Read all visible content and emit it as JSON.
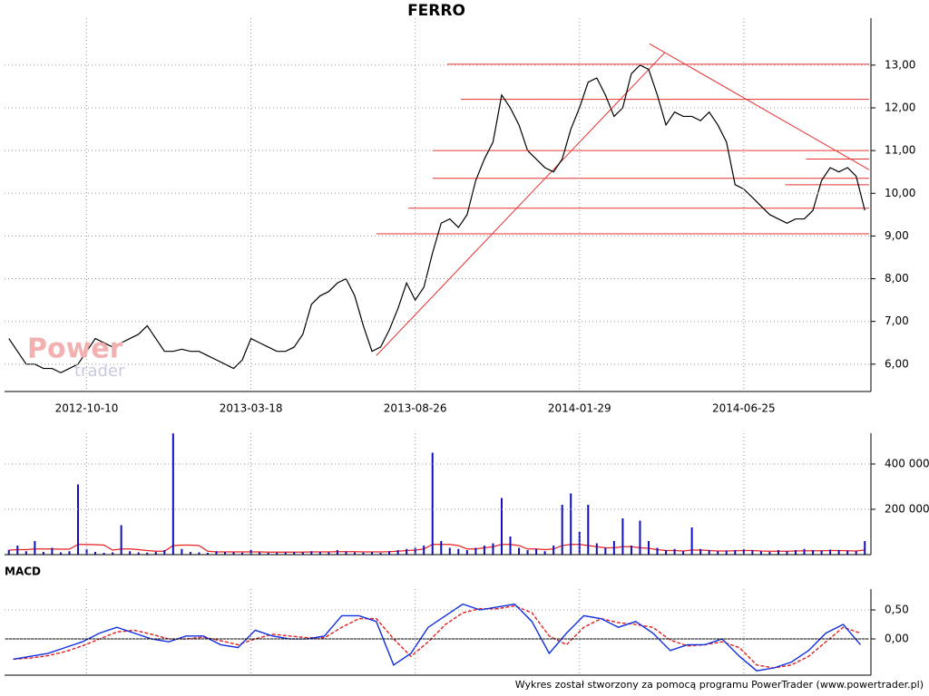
{
  "chart_data": [
    {
      "type": "price",
      "title": "FERRO",
      "categories": [
        null,
        null,
        null,
        null,
        null,
        null,
        null,
        null,
        null,
        "2012-10-10",
        null,
        null,
        null,
        null,
        null,
        null,
        null,
        null,
        null,
        null,
        null,
        null,
        null,
        null,
        null,
        null,
        null,
        null,
        "2013-03-18",
        null,
        null,
        null,
        null,
        null,
        null,
        null,
        null,
        null,
        null,
        null,
        null,
        null,
        null,
        null,
        null,
        null,
        null,
        "2013-08-26",
        null,
        null,
        null,
        null,
        null,
        null,
        null,
        null,
        null,
        null,
        null,
        null,
        null,
        null,
        null,
        null,
        null,
        null,
        "2014-01-29",
        null,
        null,
        null,
        null,
        null,
        null,
        null,
        null,
        null,
        null,
        null,
        null,
        null,
        null,
        null,
        null,
        null,
        null,
        "2014-06-25",
        null,
        null,
        null,
        null,
        null,
        null,
        null,
        null,
        null,
        null,
        null,
        null,
        null,
        null
      ],
      "series": [
        {
          "color": "#000000",
          "values": [
            6.6,
            6.3,
            6.0,
            6.0,
            5.9,
            5.9,
            5.8,
            5.9,
            6.0,
            6.3,
            6.6,
            6.5,
            6.4,
            6.5,
            6.6,
            6.7,
            6.9,
            6.6,
            6.3,
            6.3,
            6.35,
            6.3,
            6.3,
            6.2,
            6.1,
            6.0,
            5.9,
            6.1,
            6.6,
            6.5,
            6.4,
            6.3,
            6.3,
            6.4,
            6.7,
            7.4,
            7.6,
            7.7,
            7.9,
            8.0,
            7.6,
            6.9,
            6.3,
            6.4,
            6.8,
            7.3,
            7.9,
            7.5,
            7.8,
            8.6,
            9.3,
            9.4,
            9.2,
            9.5,
            10.3,
            10.8,
            11.2,
            12.3,
            12.0,
            11.6,
            11.0,
            10.8,
            10.6,
            10.5,
            10.8,
            11.5,
            12.0,
            12.6,
            12.7,
            12.3,
            11.8,
            12.0,
            12.8,
            13.0,
            12.9,
            12.3,
            11.6,
            11.9,
            11.8,
            11.8,
            11.7,
            11.9,
            11.6,
            11.2,
            10.2,
            10.1,
            9.9,
            9.7,
            9.5,
            9.4,
            9.3,
            9.4,
            9.4,
            9.6,
            10.3,
            10.6,
            10.5,
            10.6,
            10.4,
            9.6
          ]
        }
      ],
      "levels": [
        {
          "value": 13.02,
          "from": 50.7
        },
        {
          "value": 12.2,
          "from": 52.3
        },
        {
          "value": 11.0,
          "from": 49.0
        },
        {
          "value": 10.35,
          "from": 49.0
        },
        {
          "value": 9.65,
          "from": 46.2
        },
        {
          "value": 9.05,
          "from": 42.5
        },
        {
          "value": 10.8,
          "from": 92.2
        },
        {
          "value": 10.2,
          "from": 89.8
        }
      ],
      "level_color": "#e83030",
      "trendlines": [
        {
          "x": [
            42.5,
            75.9
          ],
          "y": [
            6.2,
            13.3
          ]
        },
        {
          "x": [
            74.1,
            99.5
          ],
          "y": [
            13.5,
            10.55
          ]
        }
      ],
      "ylim": [
        5.36,
        14.1
      ],
      "yticks": [
        {
          "value": 6,
          "label": "6,00"
        },
        {
          "value": 7,
          "label": "7,00"
        },
        {
          "value": 8,
          "label": "8,00"
        },
        {
          "value": 9,
          "label": "9,00"
        },
        {
          "value": 10,
          "label": "10,00"
        },
        {
          "value": 11,
          "label": "11,00"
        },
        {
          "value": 12,
          "label": "12,00"
        },
        {
          "value": 13,
          "label": "13,00"
        }
      ],
      "grid": true
    },
    {
      "type": "volume",
      "series": [
        {
          "mark": "bar",
          "color": "#1010c0",
          "values": [
            20000,
            40000,
            15000,
            60000,
            12000,
            30000,
            10000,
            15000,
            310000,
            25000,
            12000,
            8000,
            10000,
            130000,
            15000,
            10000,
            9000,
            12000,
            20000,
            535000,
            25000,
            12000,
            10000,
            8000,
            15000,
            12000,
            10000,
            9000,
            20000,
            10000,
            8000,
            9000,
            10000,
            12000,
            10000,
            15000,
            12000,
            10000,
            20000,
            14000,
            10000,
            9000,
            12000,
            8000,
            15000,
            20000,
            25000,
            30000,
            40000,
            450000,
            60000,
            30000,
            25000,
            20000,
            30000,
            40000,
            50000,
            250000,
            80000,
            30000,
            20000,
            25000,
            15000,
            40000,
            220000,
            270000,
            100000,
            220000,
            50000,
            30000,
            60000,
            160000,
            40000,
            150000,
            60000,
            30000,
            20000,
            25000,
            15000,
            120000,
            25000,
            20000,
            15000,
            18000,
            20000,
            25000,
            20000,
            15000,
            12000,
            20000,
            15000,
            20000,
            25000,
            20000,
            18000,
            22000,
            20000,
            18000,
            15000,
            60000
          ]
        },
        {
          "mark": "line",
          "color": "#e82020",
          "values": [
            20000,
            22000,
            22000,
            25000,
            25000,
            25000,
            24000,
            24000,
            45000,
            45000,
            44000,
            42000,
            20000,
            25000,
            25000,
            22000,
            18000,
            15000,
            15000,
            40000,
            42000,
            42000,
            40000,
            15000,
            12000,
            12000,
            12000,
            12000,
            12000,
            12000,
            11000,
            11000,
            11000,
            11000,
            11000,
            12000,
            12000,
            12000,
            13000,
            13000,
            13000,
            12000,
            12000,
            12000,
            13000,
            15000,
            18000,
            20000,
            25000,
            45000,
            45000,
            45000,
            40000,
            25000,
            25000,
            30000,
            35000,
            45000,
            45000,
            40000,
            25000,
            25000,
            22000,
            25000,
            40000,
            45000,
            45000,
            40000,
            35000,
            30000,
            30000,
            35000,
            35000,
            30000,
            28000,
            22000,
            18000,
            18000,
            16000,
            20000,
            20000,
            18000,
            16000,
            16000,
            17000,
            18000,
            18000,
            16000,
            15000,
            15000,
            15000,
            16000,
            17000,
            17000,
            17000,
            18000,
            18000,
            17000,
            16000,
            20000
          ]
        }
      ],
      "ylim": [
        0,
        536000
      ],
      "yticks": [
        {
          "value": 200000,
          "label": "200 000"
        },
        {
          "value": 400000,
          "label": "400 000"
        }
      ],
      "grid": true
    },
    {
      "type": "macd",
      "title": "MACD",
      "series": [
        {
          "color": "#1030e0",
          "values": [
            -0.35,
            -0.3,
            -0.25,
            -0.15,
            -0.05,
            0.1,
            0.2,
            0.1,
            0.0,
            -0.05,
            0.05,
            0.05,
            -0.1,
            -0.15,
            0.15,
            0.05,
            0.0,
            0.0,
            0.05,
            0.4,
            0.4,
            0.3,
            -0.45,
            -0.25,
            0.2,
            0.4,
            0.6,
            0.5,
            0.55,
            0.6,
            0.3,
            -0.25,
            0.1,
            0.4,
            0.35,
            0.2,
            0.3,
            0.1,
            -0.2,
            -0.1,
            -0.1,
            0.0,
            -0.3,
            -0.55,
            -0.5,
            -0.4,
            -0.2,
            0.1,
            0.25,
            -0.1
          ]
        },
        {
          "color": "#e02020",
          "dashed": true,
          "values": [
            -0.35,
            -0.33,
            -0.29,
            -0.22,
            -0.12,
            0.0,
            0.12,
            0.15,
            0.08,
            0.0,
            0.0,
            0.03,
            -0.03,
            -0.1,
            0.0,
            0.08,
            0.05,
            0.02,
            0.02,
            0.2,
            0.35,
            0.35,
            0.0,
            -0.3,
            -0.05,
            0.25,
            0.45,
            0.52,
            0.52,
            0.57,
            0.45,
            0.05,
            -0.1,
            0.2,
            0.35,
            0.28,
            0.25,
            0.2,
            -0.02,
            -0.12,
            -0.1,
            -0.05,
            -0.15,
            -0.45,
            -0.5,
            -0.45,
            -0.3,
            -0.05,
            0.2,
            0.1
          ]
        }
      ],
      "ylim": [
        -0.625,
        0.86
      ],
      "yticks": [
        {
          "value": 0,
          "label": "0,00"
        },
        {
          "value": 0.5,
          "label": "0,50"
        }
      ],
      "grid": true
    }
  ],
  "watermark": {
    "top": "Power",
    "bottom": "trader"
  },
  "footer": "Wykres został stworzony za pomocą programu PowerTrader (www.powertrader.pl)"
}
